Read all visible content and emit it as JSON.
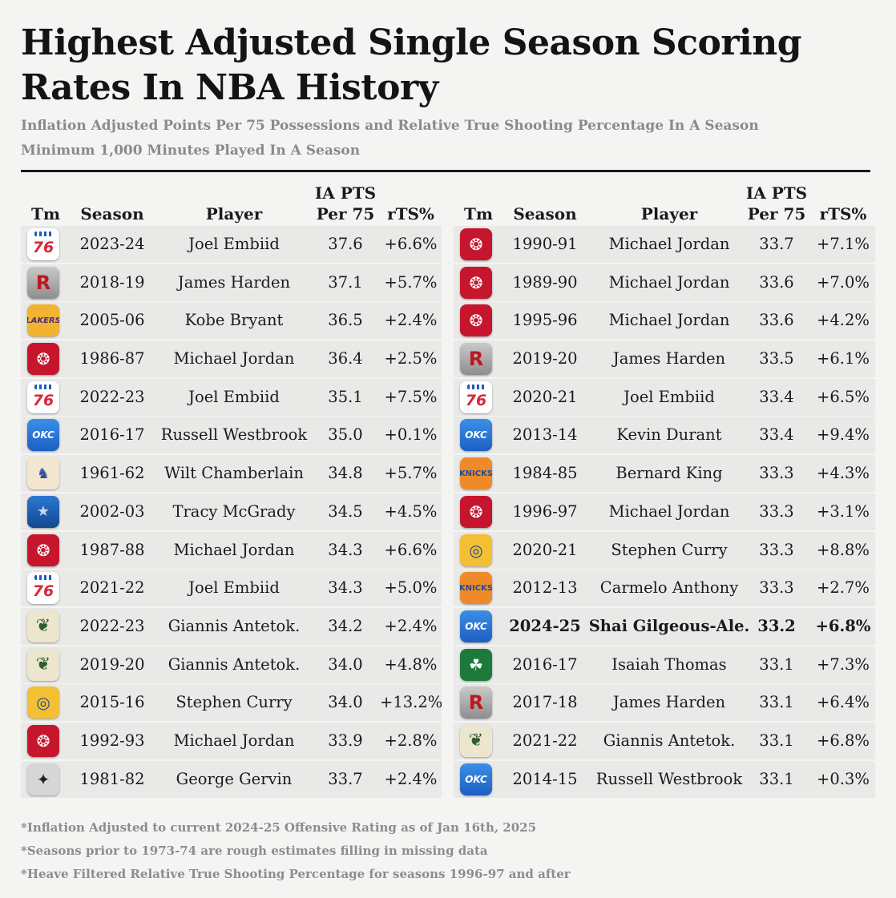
{
  "chart_data": {
    "type": "table",
    "title": "Highest Adjusted Single Season Scoring Rates In NBA History",
    "subtitle": [
      "Inflation Adjusted Points Per 75 Possessions and Relative True Shooting Percentage In A Season",
      "Minimum 1,000 Minutes Played In A Season"
    ],
    "columns": {
      "team": "Tm",
      "season": "Season",
      "player": "Player",
      "pts_line1": "IA PTS",
      "pts_line2": "Per 75",
      "rts": "rTS%"
    },
    "left_rows": [
      {
        "team": "76ers",
        "icon": "76ers-logo-icon",
        "season": "2023-24",
        "player": "Joel Embiid",
        "pts": 37.6,
        "rts": "+6.6%"
      },
      {
        "team": "Rockets",
        "icon": "rockets-logo-icon",
        "season": "2018-19",
        "player": "James Harden",
        "pts": 37.1,
        "rts": "+5.7%"
      },
      {
        "team": "Lakers",
        "icon": "lakers-logo-icon",
        "season": "2005-06",
        "player": "Kobe Bryant",
        "pts": 36.5,
        "rts": "+2.4%"
      },
      {
        "team": "Bulls",
        "icon": "bulls-logo-icon",
        "season": "1986-87",
        "player": "Michael Jordan",
        "pts": 36.4,
        "rts": "+2.5%"
      },
      {
        "team": "76ers",
        "icon": "76ers-logo-icon",
        "season": "2022-23",
        "player": "Joel Embiid",
        "pts": 35.1,
        "rts": "+7.5%"
      },
      {
        "team": "Thunder",
        "icon": "thunder-logo-icon",
        "season": "2016-17",
        "player": "Russell Westbrook",
        "pts": 35.0,
        "rts": "+0.1%"
      },
      {
        "team": "Warriors (Philadelphia)",
        "icon": "philadelphia-warriors-logo-icon",
        "season": "1961-62",
        "player": "Wilt Chamberlain",
        "pts": 34.8,
        "rts": "+5.7%"
      },
      {
        "team": "Magic",
        "icon": "magic-logo-icon",
        "season": "2002-03",
        "player": "Tracy McGrady",
        "pts": 34.5,
        "rts": "+4.5%"
      },
      {
        "team": "Bulls",
        "icon": "bulls-logo-icon",
        "season": "1987-88",
        "player": "Michael Jordan",
        "pts": 34.3,
        "rts": "+6.6%"
      },
      {
        "team": "76ers",
        "icon": "76ers-logo-icon",
        "season": "2021-22",
        "player": "Joel Embiid",
        "pts": 34.3,
        "rts": "+5.0%"
      },
      {
        "team": "Bucks",
        "icon": "bucks-logo-icon",
        "season": "2022-23",
        "player": "Giannis Antetok.",
        "pts": 34.2,
        "rts": "+2.4%"
      },
      {
        "team": "Bucks",
        "icon": "bucks-logo-icon",
        "season": "2019-20",
        "player": "Giannis Antetok.",
        "pts": 34.0,
        "rts": "+4.8%"
      },
      {
        "team": "Warriors",
        "icon": "warriors-logo-icon",
        "season": "2015-16",
        "player": "Stephen Curry",
        "pts": 34.0,
        "rts": "+13.2%"
      },
      {
        "team": "Bulls",
        "icon": "bulls-logo-icon",
        "season": "1992-93",
        "player": "Michael Jordan",
        "pts": 33.9,
        "rts": "+2.8%"
      },
      {
        "team": "Spurs",
        "icon": "spurs-logo-icon",
        "season": "1981-82",
        "player": "George Gervin",
        "pts": 33.7,
        "rts": "+2.4%"
      }
    ],
    "right_rows": [
      {
        "team": "Bulls",
        "icon": "bulls-logo-icon",
        "season": "1990-91",
        "player": "Michael Jordan",
        "pts": 33.7,
        "rts": "+7.1%"
      },
      {
        "team": "Bulls",
        "icon": "bulls-logo-icon",
        "season": "1989-90",
        "player": "Michael Jordan",
        "pts": 33.6,
        "rts": "+7.0%"
      },
      {
        "team": "Bulls",
        "icon": "bulls-logo-icon",
        "season": "1995-96",
        "player": "Michael Jordan",
        "pts": 33.6,
        "rts": "+4.2%"
      },
      {
        "team": "Rockets",
        "icon": "rockets-logo-icon",
        "season": "2019-20",
        "player": "James Harden",
        "pts": 33.5,
        "rts": "+6.1%"
      },
      {
        "team": "76ers",
        "icon": "76ers-logo-icon",
        "season": "2020-21",
        "player": "Joel Embiid",
        "pts": 33.4,
        "rts": "+6.5%"
      },
      {
        "team": "Thunder",
        "icon": "thunder-logo-icon",
        "season": "2013-14",
        "player": "Kevin Durant",
        "pts": 33.4,
        "rts": "+9.4%"
      },
      {
        "team": "Knicks",
        "icon": "knicks-logo-icon",
        "season": "1984-85",
        "player": "Bernard King",
        "pts": 33.3,
        "rts": "+4.3%"
      },
      {
        "team": "Bulls",
        "icon": "bulls-logo-icon",
        "season": "1996-97",
        "player": "Michael Jordan",
        "pts": 33.3,
        "rts": "+3.1%"
      },
      {
        "team": "Warriors",
        "icon": "warriors-logo-icon",
        "season": "2020-21",
        "player": "Stephen Curry",
        "pts": 33.3,
        "rts": "+8.8%"
      },
      {
        "team": "Knicks",
        "icon": "knicks-logo-icon",
        "season": "2012-13",
        "player": "Carmelo Anthony",
        "pts": 33.3,
        "rts": "+2.7%"
      },
      {
        "team": "Thunder",
        "icon": "thunder-logo-icon",
        "season": "2024-25",
        "player": "Shai Gilgeous-Ale.",
        "pts": 33.2,
        "rts": "+6.8%",
        "highlight": true
      },
      {
        "team": "Celtics",
        "icon": "celtics-logo-icon",
        "season": "2016-17",
        "player": "Isaiah Thomas",
        "pts": 33.1,
        "rts": "+7.3%"
      },
      {
        "team": "Rockets",
        "icon": "rockets-logo-icon",
        "season": "2017-18",
        "player": "James Harden",
        "pts": 33.1,
        "rts": "+6.4%"
      },
      {
        "team": "Bucks",
        "icon": "bucks-logo-icon",
        "season": "2021-22",
        "player": "Giannis Antetok.",
        "pts": 33.1,
        "rts": "+6.8%"
      },
      {
        "team": "Thunder",
        "icon": "thunder-logo-icon",
        "season": "2014-15",
        "player": "Russell Westbrook",
        "pts": 33.1,
        "rts": "+0.3%"
      }
    ],
    "footnotes": [
      "*Inflation Adjusted to current 2024-25 Offensive Rating as of Jan 16th, 2025",
      "*Seasons prior to 1973-74 are rough estimates filling in missing data",
      "*Heave Filtered Relative True Shooting Percentage for seasons 1996-97 and after"
    ]
  }
}
